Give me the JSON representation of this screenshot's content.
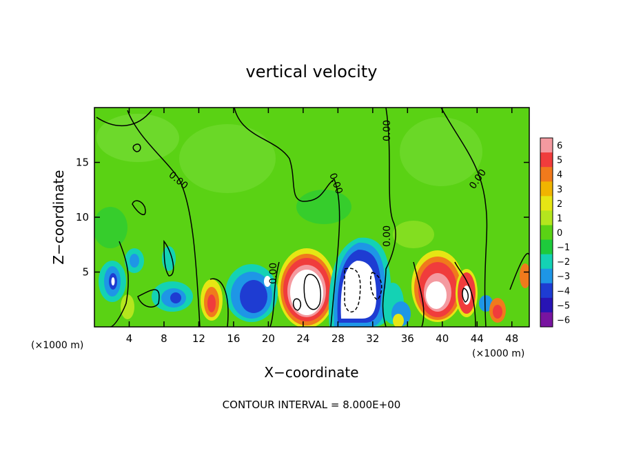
{
  "chart_data": {
    "type": "heatmap",
    "title": "vertical velocity",
    "xlabel": "X−coordinate",
    "ylabel": "Z−coordinate",
    "x_unit_left": "(×1000 m)",
    "x_unit_right": "(×1000 m)",
    "footer": "CONTOUR INTERVAL = 8.000E+00",
    "xlim": [
      0,
      50
    ],
    "ylim": [
      0,
      20
    ],
    "x_ticks": [
      "4",
      "8",
      "12",
      "16",
      "20",
      "24",
      "28",
      "32",
      "36",
      "40",
      "44",
      "48"
    ],
    "y_ticks": [
      "5",
      "10",
      "15"
    ],
    "x_tick_values": [
      4,
      8,
      12,
      16,
      20,
      24,
      28,
      32,
      36,
      40,
      44,
      48
    ],
    "y_tick_values": [
      5,
      10,
      15
    ],
    "contour_labels": [
      "0.00",
      "0.00",
      "0.00",
      "0.00",
      "0.00",
      "0.00"
    ],
    "colorbar": {
      "levels": [
        "6",
        "5",
        "4",
        "3",
        "2",
        "1",
        "0",
        "−1",
        "−2",
        "−3",
        "−4",
        "−5",
        "−6"
      ],
      "colors": [
        "#f49aa0",
        "#f03c3c",
        "#f07a1c",
        "#f0b400",
        "#e6e614",
        "#b4e61e",
        "#5ad214",
        "#1eca3c",
        "#14d2b4",
        "#1e96e6",
        "#1e3cd2",
        "#2814b4",
        "#7814a0"
      ]
    },
    "features": [
      {
        "x": 26,
        "z": 2.8,
        "w": 6.5,
        "kind": "updraft-core"
      },
      {
        "x": 30,
        "z": 3,
        "w": -6.5,
        "kind": "downdraft-core"
      },
      {
        "x": 40,
        "z": 3,
        "w": 6.5,
        "kind": "updraft-core"
      },
      {
        "x": 42.5,
        "z": 3,
        "w": 4.5,
        "kind": "updraft"
      },
      {
        "x": 13.5,
        "z": 2.5,
        "w": 4,
        "kind": "updraft"
      },
      {
        "x": 18,
        "z": 3,
        "w": -4,
        "kind": "downdraft"
      },
      {
        "x": 3,
        "z": 4,
        "w": -4.5,
        "kind": "downdraft"
      },
      {
        "x": 46,
        "z": 1.5,
        "w": 4,
        "kind": "updraft"
      }
    ]
  }
}
